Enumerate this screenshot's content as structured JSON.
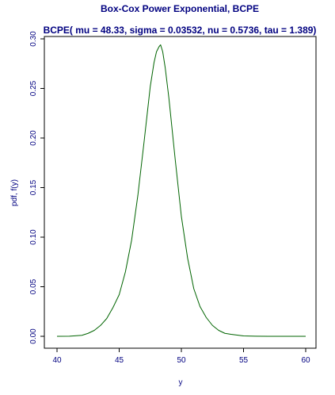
{
  "chart_data": {
    "type": "line",
    "title": "Box-Cox Power Exponential, BCPE",
    "subtitle": "BCPE( mu = 48.33, sigma = 0.03532, nu = 0.5736, tau = 1.389)",
    "xlabel": "y",
    "ylabel": "pdf, f(y)",
    "xlim": [
      40,
      60
    ],
    "ylim": [
      0,
      0.3
    ],
    "x_ticks": [
      40,
      45,
      50,
      55,
      60
    ],
    "x_tick_labels": [
      "40",
      "45",
      "50",
      "55",
      "60"
    ],
    "y_ticks": [
      0,
      0.05,
      0.1,
      0.15,
      0.2,
      0.25,
      0.3
    ],
    "y_tick_labels": [
      "0.00",
      "0.05",
      "0.10",
      "0.15",
      "0.20",
      "0.25",
      "0.30"
    ],
    "grid": false,
    "legend": "none",
    "series": [
      {
        "color": "#006400",
        "x": [
          40,
          41,
          42,
          42.5,
          43,
          43.5,
          44,
          44.5,
          45,
          45.5,
          46,
          46.5,
          47,
          47.5,
          47.8,
          48,
          48.2,
          48.33,
          48.5,
          48.7,
          49,
          49.5,
          50,
          50.5,
          51,
          51.5,
          52,
          52.5,
          53,
          53.5,
          54,
          55,
          56,
          57,
          58,
          59,
          60
        ],
        "y": [
          0.0,
          0.0001,
          0.001,
          0.003,
          0.006,
          0.011,
          0.018,
          0.029,
          0.042,
          0.065,
          0.097,
          0.142,
          0.196,
          0.252,
          0.276,
          0.287,
          0.292,
          0.294,
          0.287,
          0.271,
          0.24,
          0.179,
          0.121,
          0.079,
          0.048,
          0.03,
          0.019,
          0.011,
          0.006,
          0.003,
          0.002,
          0.0004,
          0.0001,
          0.0,
          0.0,
          0.0,
          0.0
        ]
      }
    ]
  },
  "colors": {
    "text": "#000080",
    "axis": "#000000",
    "curve": "#006400"
  }
}
